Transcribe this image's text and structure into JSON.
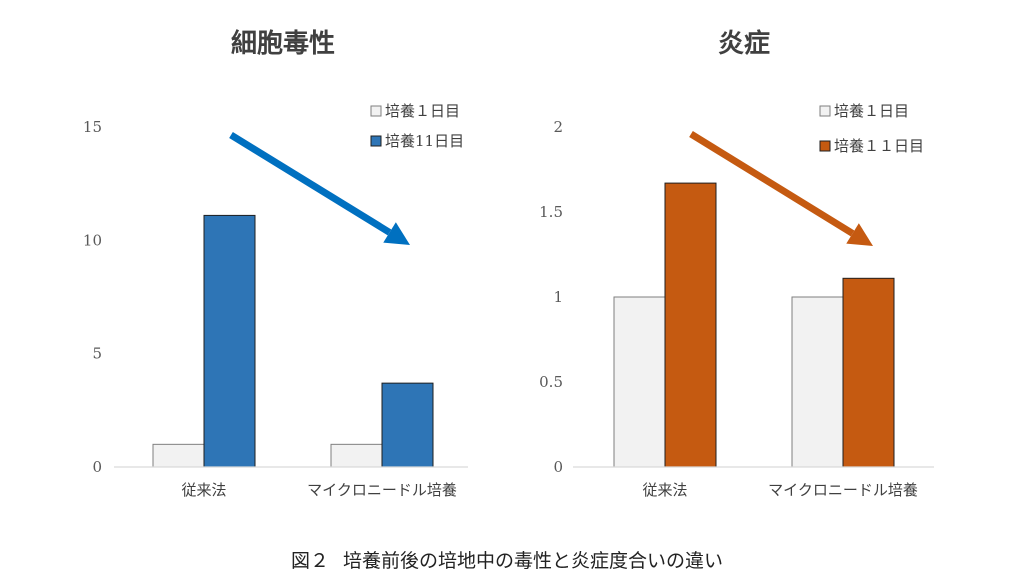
{
  "chart_data": [
    {
      "type": "bar",
      "title": "細胞毒性",
      "categories": [
        "従来法",
        "マイクロニードル培養"
      ],
      "series": [
        {
          "name": "培養１日目",
          "values": [
            1,
            1
          ],
          "color": "#f2f2f2"
        },
        {
          "name": "培養11日目",
          "values": [
            11.1,
            3.7
          ],
          "color": "#2e75b6"
        }
      ],
      "ylim": [
        0,
        15
      ],
      "yticks": [
        "0",
        "5",
        "10",
        "15"
      ],
      "ytick_values": [
        0,
        5,
        10,
        15
      ],
      "legend_position": "top-right",
      "grid": false,
      "annotation": "downward-trend-arrow",
      "arrow_color": "#0070c0"
    },
    {
      "type": "bar",
      "title": "炎症",
      "categories": [
        "従来法",
        "マイクロニードル培養"
      ],
      "series": [
        {
          "name": "培養１日目",
          "values": [
            1,
            1
          ],
          "color": "#f2f2f2"
        },
        {
          "name": "培養１１日目",
          "values": [
            1.67,
            1.11
          ],
          "color": "#c55a11"
        }
      ],
      "ylim": [
        0,
        2
      ],
      "yticks": [
        "0",
        "0.5",
        "1",
        "1.5",
        "2"
      ],
      "ytick_values": [
        0,
        0.5,
        1,
        1.5,
        2
      ],
      "legend_position": "top-right",
      "grid": false,
      "annotation": "downward-trend-arrow",
      "arrow_color": "#c55a11"
    }
  ],
  "caption": {
    "label": "図２",
    "text": "培養前後の培地中の毒性と炎症度合いの違い"
  }
}
